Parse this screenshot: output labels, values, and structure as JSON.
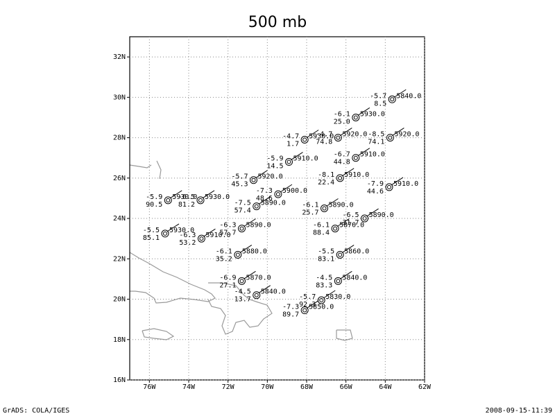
{
  "title": "500 mb",
  "footer_left": "GrADS: COLA/IGES",
  "footer_right": "2008-09-15-11:39",
  "xlim": [
    -77,
    -62
  ],
  "ylim": [
    16,
    33
  ],
  "xticks": [
    {
      "value": -76,
      "label": "76W"
    },
    {
      "value": -74,
      "label": "74W"
    },
    {
      "value": -72,
      "label": "72W"
    },
    {
      "value": -70,
      "label": "70W"
    },
    {
      "value": -68,
      "label": "68W"
    },
    {
      "value": -66,
      "label": "66W"
    },
    {
      "value": -64,
      "label": "64W"
    },
    {
      "value": -62,
      "label": "62W"
    }
  ],
  "yticks": [
    {
      "value": 16,
      "label": "16N"
    },
    {
      "value": 18,
      "label": "18N"
    },
    {
      "value": 20,
      "label": "20N"
    },
    {
      "value": 22,
      "label": "22N"
    },
    {
      "value": 24,
      "label": "24N"
    },
    {
      "value": 26,
      "label": "26N"
    },
    {
      "value": 28,
      "label": "28N"
    },
    {
      "value": 30,
      "label": "30N"
    },
    {
      "value": 32,
      "label": "32N"
    }
  ],
  "stations": [
    {
      "lon": -63.65,
      "lat": 29.9,
      "temp": "-5.7",
      "height": "5840.0",
      "rh": "8.5"
    },
    {
      "lon": -65.5,
      "lat": 29.0,
      "temp": "-6.1",
      "height": "5930.0",
      "rh": "25.0"
    },
    {
      "lon": -66.4,
      "lat": 28.0,
      "temp": "-4.7",
      "height": "5920.0",
      "rh": "74.8"
    },
    {
      "lon": -63.75,
      "lat": 28.0,
      "temp": "-8.5",
      "height": "5920.0",
      "rh": "74.1"
    },
    {
      "lon": -68.1,
      "lat": 27.9,
      "temp": "-4.7",
      "height": "5930.0",
      "rh": "1.7"
    },
    {
      "lon": -65.5,
      "lat": 27.0,
      "temp": "-6.7",
      "height": "5910.0",
      "rh": "44.8"
    },
    {
      "lon": -68.9,
      "lat": 26.8,
      "temp": "-5.9",
      "height": "5910.0",
      "rh": "14.5"
    },
    {
      "lon": -70.7,
      "lat": 25.9,
      "temp": "-5.7",
      "height": "5920.0",
      "rh": "45.3"
    },
    {
      "lon": -66.3,
      "lat": 26.0,
      "temp": "-8.1",
      "height": "5910.0",
      "rh": "22.4"
    },
    {
      "lon": -63.8,
      "lat": 25.55,
      "temp": "-7.9",
      "height": "5910.0",
      "rh": "44.6"
    },
    {
      "lon": -75.05,
      "lat": 24.9,
      "temp": "-5.9",
      "height": "5930.0",
      "rh": "90.5"
    },
    {
      "lon": -73.4,
      "lat": 24.9,
      "temp": "-6.5",
      "height": "5930.0",
      "rh": "81.2"
    },
    {
      "lon": -69.45,
      "lat": 25.2,
      "temp": "-7.3",
      "height": "5900.0",
      "rh": "48.6"
    },
    {
      "lon": -70.55,
      "lat": 24.6,
      "temp": "-7.5",
      "height": "5890.0",
      "rh": "57.4"
    },
    {
      "lon": -67.1,
      "lat": 24.5,
      "temp": "-6.1",
      "height": "5890.0",
      "rh": "25.7"
    },
    {
      "lon": -65.05,
      "lat": 24.0,
      "temp": "-6.5",
      "height": "5890.0",
      "rh": "31.7"
    },
    {
      "lon": -75.2,
      "lat": 23.25,
      "temp": "-5.5",
      "height": "5930.0",
      "rh": "85.1"
    },
    {
      "lon": -73.35,
      "lat": 23.0,
      "temp": "-6.3",
      "height": "5910.0",
      "rh": "53.2"
    },
    {
      "lon": -71.3,
      "lat": 23.5,
      "temp": "-6.3",
      "height": "5890.0",
      "rh": "57.7"
    },
    {
      "lon": -66.55,
      "lat": 23.5,
      "temp": "-6.1",
      "height": "5870.0",
      "rh": "88.4"
    },
    {
      "lon": -71.5,
      "lat": 22.2,
      "temp": "-6.1",
      "height": "5880.0",
      "rh": "35.2"
    },
    {
      "lon": -66.3,
      "lat": 22.2,
      "temp": "-5.5",
      "height": "5860.0",
      "rh": "83.1"
    },
    {
      "lon": -71.3,
      "lat": 20.9,
      "temp": "-6.9",
      "height": "5870.0",
      "rh": "27.1"
    },
    {
      "lon": -66.4,
      "lat": 20.9,
      "temp": "-4.5",
      "height": "5840.0",
      "rh": "83.3"
    },
    {
      "lon": -70.55,
      "lat": 20.2,
      "temp": "-4.5",
      "height": "5840.0",
      "rh": "13.7"
    },
    {
      "lon": -67.25,
      "lat": 19.95,
      "temp": "-5.7",
      "height": "5830.0",
      "rh": "92.3"
    },
    {
      "lon": -68.1,
      "lat": 19.45,
      "temp": "-7.3",
      "height": "5850.0",
      "rh": "89.7"
    }
  ]
}
